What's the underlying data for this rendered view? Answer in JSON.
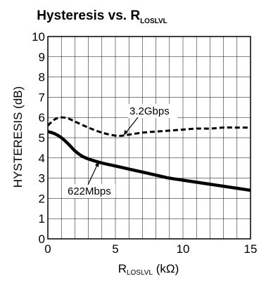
{
  "chart_data": {
    "type": "line",
    "title": "Hysteresis vs. R",
    "title_subscript": "LOSLVL",
    "xlabel": "R",
    "xlabel_subscript": "LOSLVL",
    "xlabel_unit": " (kΩ)",
    "ylabel": "HYSTERESIS (dB)",
    "xlim": [
      0,
      15
    ],
    "ylim": [
      0,
      10
    ],
    "x_ticks": [
      0,
      5,
      10,
      15
    ],
    "y_ticks": [
      0,
      1,
      2,
      3,
      4,
      5,
      6,
      7,
      8,
      9,
      10
    ],
    "x_tick_labels": [
      "0",
      "5",
      "10",
      "15"
    ],
    "y_tick_labels": [
      "0",
      "1",
      "2",
      "3",
      "4",
      "5",
      "6",
      "7",
      "8",
      "9",
      "10"
    ],
    "grid": true,
    "x_grid_step": 1,
    "series": [
      {
        "name": "3.2Gbps",
        "style": "dashed",
        "x": [
          0,
          0.5,
          1,
          1.5,
          2,
          3,
          4,
          5,
          5.5,
          6,
          7,
          8,
          9,
          10,
          11,
          12,
          13,
          14,
          15
        ],
        "y": [
          5.6,
          5.9,
          6.0,
          5.95,
          5.8,
          5.5,
          5.25,
          5.1,
          5.1,
          5.15,
          5.25,
          5.3,
          5.35,
          5.4,
          5.45,
          5.45,
          5.5,
          5.5,
          5.5
        ]
      },
      {
        "name": "622Mbps",
        "style": "solid",
        "x": [
          0,
          0.5,
          1,
          1.5,
          2,
          2.5,
          3,
          4,
          5,
          6,
          7,
          8,
          9,
          10,
          11,
          12,
          13,
          14,
          15
        ],
        "y": [
          5.3,
          5.2,
          5.0,
          4.7,
          4.35,
          4.1,
          3.95,
          3.75,
          3.6,
          3.45,
          3.3,
          3.15,
          3.0,
          2.9,
          2.8,
          2.7,
          2.6,
          2.5,
          2.4
        ]
      }
    ],
    "annotations": [
      {
        "text": "3.2Gbps",
        "series": "3.2Gbps"
      },
      {
        "text": "622Mbps",
        "series": "622Mbps"
      }
    ]
  }
}
